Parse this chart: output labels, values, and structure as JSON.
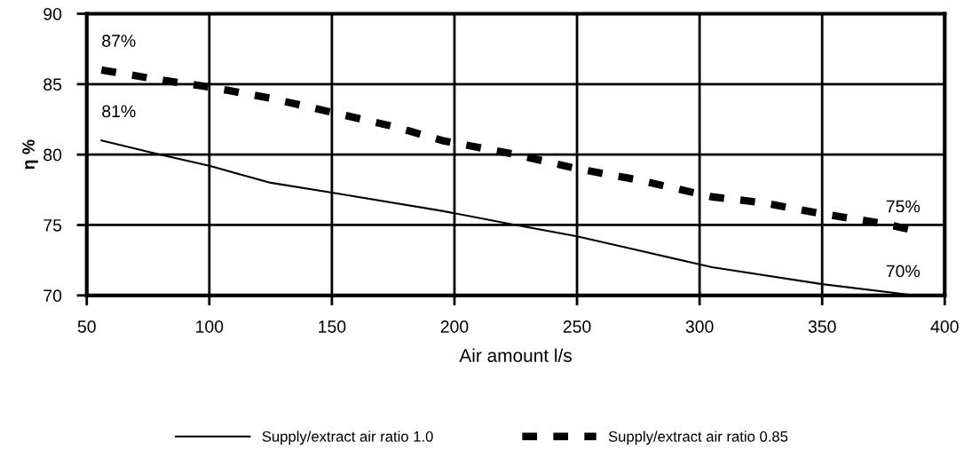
{
  "chart_data": {
    "type": "line",
    "xlabel": "Air amount l/s",
    "ylabel": "η %",
    "xlim": [
      50,
      400
    ],
    "xticks": [
      50,
      100,
      150,
      200,
      250,
      300,
      350,
      400
    ],
    "ylim": [
      70,
      90
    ],
    "yticks": [
      70,
      75,
      80,
      85,
      90
    ],
    "grid": true,
    "legend": "bottom",
    "marker": "none",
    "series": [
      {
        "name": "Supply/extract air ratio 1.0",
        "color": "#000000",
        "line_style": "solid",
        "x": [
          56,
          80,
          100,
          125,
          150,
          195,
          225,
          250,
          275,
          305,
          350,
          388
        ],
        "values": [
          81,
          80.0,
          79.2,
          78,
          77.3,
          76,
          75.0,
          74.2,
          73.2,
          72,
          70.8,
          70
        ],
        "value_labels": [
          "81%",
          null,
          null,
          null,
          null,
          null,
          null,
          null,
          null,
          null,
          null,
          "70%"
        ]
      },
      {
        "name": "Supply/extract air ratio 0.85",
        "color": "#000000",
        "line_style": "dashed",
        "x": [
          56,
          80,
          100,
          125,
          150,
          175,
          195,
          225,
          250,
          275,
          305,
          325,
          350,
          375,
          388
        ],
        "values": [
          86,
          85.3,
          84.8,
          84,
          83,
          82,
          81,
          80,
          79,
          78.2,
          77,
          76.6,
          75.8,
          75.1,
          74.6
        ],
        "value_labels": [
          null,
          null,
          null,
          null,
          null,
          null,
          null,
          null,
          null,
          null,
          null,
          null,
          null,
          null,
          "75%"
        ]
      }
    ],
    "annotations": [
      "87%"
    ]
  }
}
